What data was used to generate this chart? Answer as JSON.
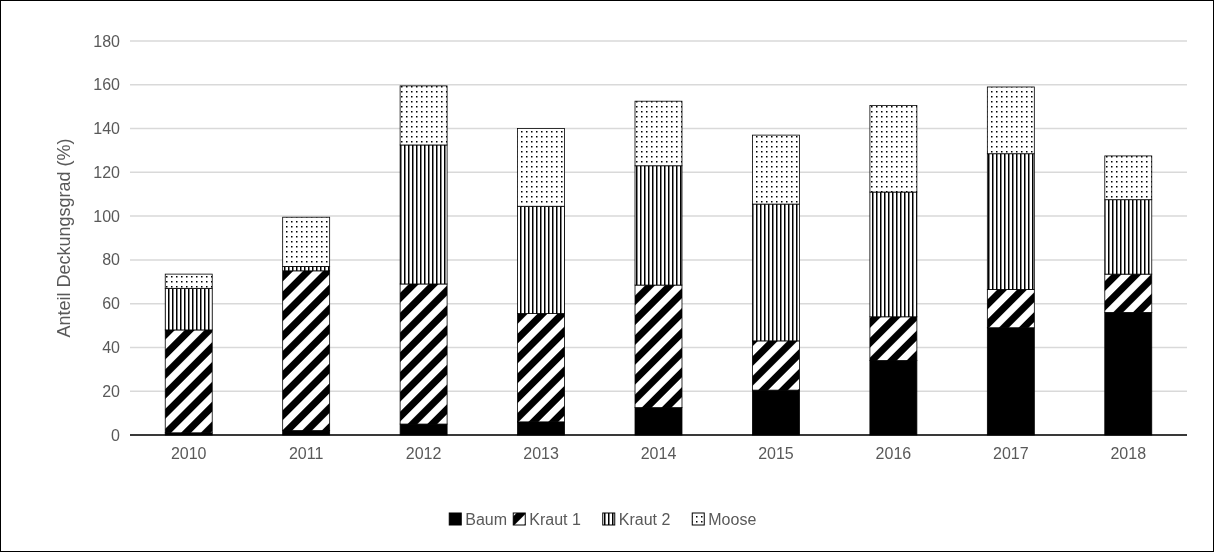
{
  "chart_data": {
    "type": "bar",
    "stacked": true,
    "ylabel": "Anteil Deckungsgrad (%)",
    "categories": [
      "2010",
      "2011",
      "2012",
      "2013",
      "2014",
      "2015",
      "2016",
      "2017",
      "2018"
    ],
    "series": [
      {
        "name": "Baum",
        "color": "#000000",
        "values": [
          1,
          2,
          5,
          6,
          12.5,
          20.5,
          34,
          49,
          56
        ]
      },
      {
        "name": "Kraut 1",
        "color": "#000000",
        "values": [
          47,
          73,
          64,
          49.5,
          56,
          22.5,
          20,
          17.5,
          17.5
        ]
      },
      {
        "name": "Kraut 2",
        "color": "#000000",
        "values": [
          19,
          2,
          63.5,
          49,
          54.5,
          62.5,
          57,
          62,
          34
        ]
      },
      {
        "name": "Moose",
        "color": "#000000",
        "values": [
          6.5,
          22.5,
          27,
          35.5,
          29.5,
          31.5,
          39.5,
          30.5,
          20
        ]
      }
    ],
    "ylim": [
      0,
      180
    ],
    "yticks": [
      0,
      20,
      40,
      60,
      80,
      100,
      120,
      140,
      160,
      180
    ],
    "grid": "y",
    "legend": "bottom"
  }
}
